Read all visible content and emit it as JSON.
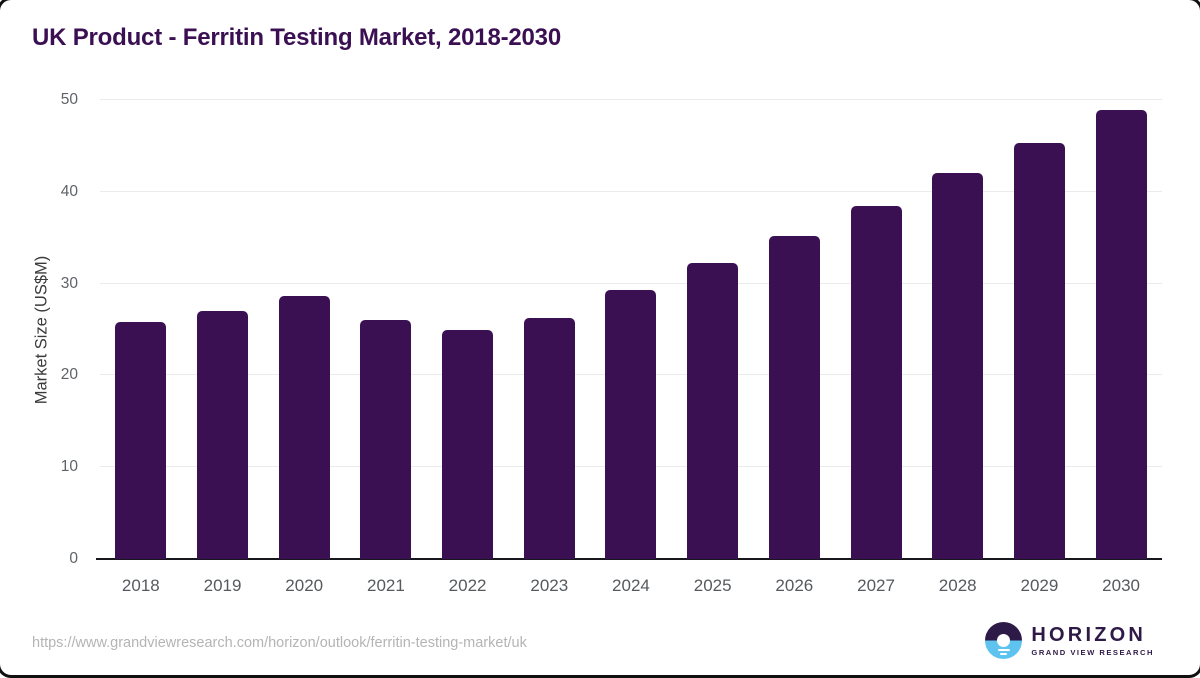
{
  "page": {
    "title": "UK Product - Ferritin Testing Market, 2018-2030",
    "source_url": "https://www.grandviewresearch.com/horizon/outlook/ferritin-testing-market/uk"
  },
  "logo": {
    "name": "HORIZON",
    "subtitle": "GRAND VIEW RESEARCH",
    "icon": "horizon-sunset-icon",
    "purple": "#2e1a47",
    "blue": "#5ec3ef"
  },
  "colors": {
    "bar": "#3b1053",
    "title_text": "#3b1053",
    "gridline": "#ebebeb",
    "axis_line": "#17171d",
    "tick_label": "#5f6368",
    "url_text": "#b4b4b4"
  },
  "chart_data": {
    "type": "bar",
    "title": "UK Product - Ferritin Testing Market, 2018-2030",
    "categories": [
      "2018",
      "2019",
      "2020",
      "2021",
      "2022",
      "2023",
      "2024",
      "2025",
      "2026",
      "2027",
      "2028",
      "2029",
      "2030"
    ],
    "values": [
      25.8,
      27.0,
      28.7,
      26.0,
      24.9,
      26.3,
      29.3,
      32.2,
      35.2,
      38.5,
      42.0,
      45.3,
      48.9
    ],
    "xlabel": "",
    "ylabel": "Market Size (US$M)",
    "ylim": [
      0,
      50
    ],
    "yticks": [
      0,
      10,
      20,
      30,
      40,
      50
    ],
    "grid": true,
    "legend": false,
    "bar_color": "#3b1053"
  }
}
